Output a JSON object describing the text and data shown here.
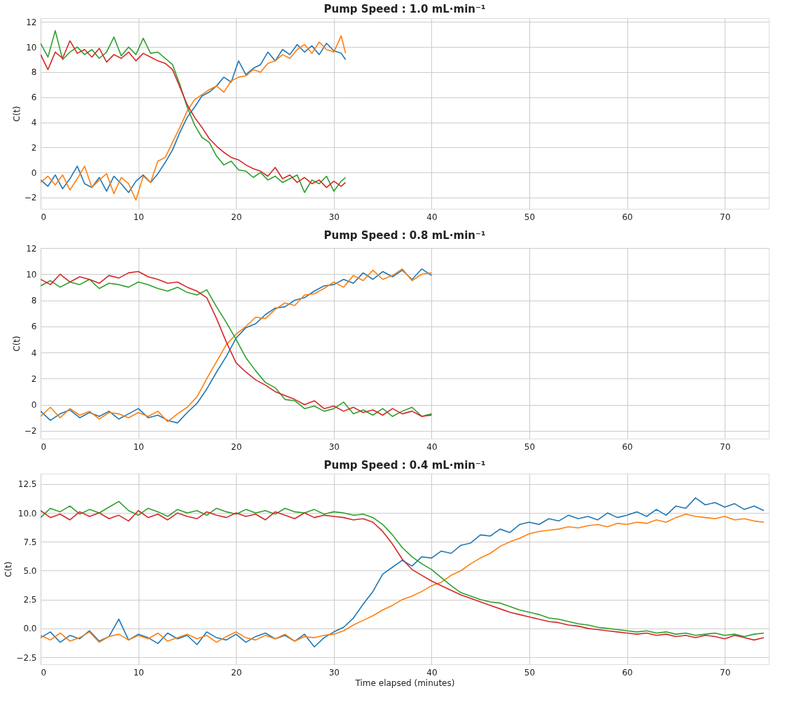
{
  "chart_data": [
    {
      "type": "line",
      "title": "Pump Speed : 1.0 mL·min⁻¹",
      "ylabel": "C(t)",
      "grid": true,
      "xlim": [
        0,
        74.5
      ],
      "xticks": [
        0,
        10,
        20,
        30,
        40,
        50,
        60,
        70
      ],
      "ylim": [
        -2.9,
        12.3
      ],
      "yticks": [
        {
          "value": -2,
          "label": "−2"
        },
        0,
        2,
        4,
        6,
        8,
        10,
        12
      ],
      "x": [
        0,
        0.75,
        1.5,
        2.25,
        3,
        3.75,
        4.5,
        5.25,
        6,
        6.75,
        7.5,
        8.25,
        9,
        9.75,
        10.5,
        11.25,
        12,
        12.75,
        13.5,
        14.25,
        15,
        15.75,
        16.5,
        17.25,
        18,
        18.75,
        19.5,
        20.25,
        21,
        21.75,
        22.5,
        23.25,
        24,
        24.75,
        25.5,
        26.25,
        27,
        27.75,
        28.5,
        29.25,
        30,
        30.75,
        31.2
      ],
      "series": [
        {
          "color": "#1f77b4",
          "values": [
            -0.6,
            -1.1,
            -0.2,
            -1.3,
            -0.5,
            0.5,
            -0.9,
            -1.2,
            -0.4,
            -1.5,
            -0.3,
            -0.9,
            -1.6,
            -0.7,
            -0.2,
            -0.8,
            -0.1,
            0.8,
            1.8,
            3.2,
            4.4,
            5.2,
            6.1,
            6.4,
            6.9,
            7.6,
            7.2,
            8.9,
            7.8,
            8.3,
            8.6,
            9.6,
            8.9,
            9.8,
            9.4,
            10.2,
            9.6,
            10.1,
            9.4,
            10.3,
            9.7,
            9.5,
            9.0
          ]
        },
        {
          "color": "#ff7f0e",
          "values": [
            -0.8,
            -0.3,
            -1.0,
            -0.2,
            -1.4,
            -0.5,
            0.5,
            -1.2,
            -0.6,
            -0.1,
            -1.7,
            -0.4,
            -0.9,
            -2.2,
            -0.3,
            -0.8,
            0.9,
            1.2,
            2.4,
            3.6,
            4.9,
            5.8,
            6.2,
            6.6,
            6.9,
            6.4,
            7.3,
            7.6,
            7.7,
            8.2,
            8.0,
            8.7,
            8.9,
            9.4,
            9.1,
            9.8,
            10.2,
            9.5,
            10.4,
            9.8,
            9.6,
            10.9,
            9.5
          ]
        },
        {
          "color": "#2ca02c",
          "values": [
            10.3,
            9.2,
            11.3,
            9.0,
            9.6,
            10.0,
            9.4,
            9.8,
            9.1,
            9.6,
            10.8,
            9.3,
            10.0,
            9.4,
            10.7,
            9.5,
            9.6,
            9.1,
            8.6,
            7.0,
            5.2,
            3.8,
            2.8,
            2.4,
            1.3,
            0.6,
            0.9,
            0.2,
            0.1,
            -0.4,
            0.0,
            -0.6,
            -0.3,
            -0.8,
            -0.5,
            -0.2,
            -1.6,
            -0.6,
            -0.9,
            -0.3,
            -1.5,
            -0.7,
            -0.4
          ]
        },
        {
          "color": "#d62728",
          "values": [
            9.4,
            8.2,
            9.6,
            9.1,
            10.5,
            9.5,
            9.8,
            9.2,
            9.9,
            8.8,
            9.4,
            9.1,
            9.6,
            8.9,
            9.5,
            9.2,
            8.9,
            8.7,
            8.2,
            6.8,
            5.4,
            4.4,
            3.6,
            2.7,
            2.1,
            1.6,
            1.2,
            1.0,
            0.6,
            0.3,
            0.1,
            -0.3,
            0.4,
            -0.5,
            -0.2,
            -0.8,
            -0.4,
            -0.9,
            -0.6,
            -1.2,
            -0.7,
            -1.1,
            -0.8
          ]
        }
      ]
    },
    {
      "type": "line",
      "title": "Pump Speed : 0.8 mL·min⁻¹",
      "ylabel": "C(t)",
      "grid": true,
      "xlim": [
        0,
        74.5
      ],
      "xticks": [
        0,
        10,
        20,
        30,
        40,
        50,
        60,
        70
      ],
      "ylim": [
        -2.6,
        12
      ],
      "yticks": [
        {
          "value": -2,
          "label": "−2"
        },
        0,
        2,
        4,
        6,
        8,
        10,
        12
      ],
      "x": [
        0,
        1,
        2,
        3,
        4,
        5,
        6,
        7,
        8,
        9,
        10,
        11,
        12,
        13,
        14,
        15,
        16,
        17,
        18,
        19,
        20,
        21,
        22,
        23,
        24,
        25,
        26,
        27,
        28,
        29,
        30,
        31,
        32,
        33,
        34,
        35,
        36,
        37,
        38,
        39,
        40
      ],
      "series": [
        {
          "color": "#1f77b4",
          "values": [
            -0.5,
            -1.2,
            -0.7,
            -0.4,
            -1.0,
            -0.6,
            -0.9,
            -0.5,
            -1.1,
            -0.7,
            -0.3,
            -1.0,
            -0.8,
            -1.2,
            -1.4,
            -0.6,
            0.1,
            1.2,
            2.5,
            3.7,
            5.1,
            5.9,
            6.2,
            6.9,
            7.4,
            7.5,
            8.0,
            8.2,
            8.7,
            9.1,
            9.2,
            9.6,
            9.3,
            10.1,
            9.6,
            10.2,
            9.8,
            10.3,
            9.6,
            10.4,
            9.9
          ]
        },
        {
          "color": "#ff7f0e",
          "values": [
            -0.9,
            -0.2,
            -1.0,
            -0.3,
            -0.8,
            -0.5,
            -1.1,
            -0.6,
            -0.7,
            -1.0,
            -0.6,
            -0.9,
            -0.5,
            -1.3,
            -0.7,
            -0.2,
            0.6,
            2.0,
            3.3,
            4.6,
            5.4,
            6.0,
            6.7,
            6.6,
            7.3,
            7.8,
            7.6,
            8.4,
            8.5,
            8.9,
            9.4,
            9.0,
            9.9,
            9.5,
            10.3,
            9.6,
            9.9,
            10.4,
            9.5,
            10.0,
            10.1
          ]
        },
        {
          "color": "#2ca02c",
          "values": [
            9.1,
            9.5,
            9.0,
            9.4,
            9.2,
            9.6,
            8.9,
            9.3,
            9.2,
            9.0,
            9.4,
            9.2,
            8.9,
            8.7,
            9.0,
            8.6,
            8.4,
            8.8,
            7.5,
            6.3,
            5.0,
            3.6,
            2.6,
            1.7,
            1.3,
            0.4,
            0.3,
            -0.3,
            -0.1,
            -0.5,
            -0.3,
            0.2,
            -0.7,
            -0.4,
            -0.8,
            -0.3,
            -0.9,
            -0.5,
            -0.2,
            -0.9,
            -0.7
          ]
        },
        {
          "color": "#d62728",
          "values": [
            9.6,
            9.2,
            10.0,
            9.4,
            9.8,
            9.6,
            9.3,
            9.9,
            9.7,
            10.1,
            10.2,
            9.8,
            9.6,
            9.3,
            9.4,
            9.0,
            8.7,
            8.2,
            6.6,
            4.8,
            3.2,
            2.5,
            1.9,
            1.5,
            1.0,
            0.7,
            0.4,
            0.0,
            0.3,
            -0.3,
            -0.1,
            -0.5,
            -0.2,
            -0.6,
            -0.4,
            -0.8,
            -0.3,
            -0.7,
            -0.5,
            -0.9,
            -0.8
          ]
        }
      ]
    },
    {
      "type": "line",
      "title": "Pump Speed : 0.4 mL·min⁻¹",
      "xlabel": "Time elapsed (minutes)",
      "ylabel": "C(t)",
      "grid": true,
      "xlim": [
        0,
        74.5
      ],
      "xticks": [
        0,
        10,
        20,
        30,
        40,
        50,
        60,
        70
      ],
      "ylim": [
        -3.1,
        13.4
      ],
      "yticks": [
        {
          "value": -2.5,
          "label": "−2.5"
        },
        {
          "value": 0,
          "label": "0.0"
        },
        2.5,
        {
          "value": 5,
          "label": "5.0"
        },
        7.5,
        {
          "value": 10,
          "label": "10.0"
        },
        12.5
      ],
      "x": [
        0,
        1,
        2,
        3,
        4,
        5,
        6,
        7,
        8,
        9,
        10,
        11,
        12,
        13,
        14,
        15,
        16,
        17,
        18,
        19,
        20,
        21,
        22,
        23,
        24,
        25,
        26,
        27,
        28,
        29,
        30,
        31,
        32,
        33,
        34,
        35,
        36,
        37,
        38,
        39,
        40,
        41,
        42,
        43,
        44,
        45,
        46,
        47,
        48,
        49,
        50,
        51,
        52,
        53,
        54,
        55,
        56,
        57,
        58,
        59,
        60,
        61,
        62,
        63,
        64,
        65,
        66,
        67,
        68,
        69,
        70,
        71,
        72,
        73,
        74
      ],
      "series": [
        {
          "color": "#1f77b4",
          "values": [
            -0.8,
            -0.3,
            -1.2,
            -0.6,
            -0.9,
            -0.2,
            -1.1,
            -0.7,
            0.8,
            -1.0,
            -0.5,
            -0.8,
            -1.3,
            -0.4,
            -0.9,
            -0.6,
            -1.4,
            -0.3,
            -0.8,
            -1.0,
            -0.5,
            -1.2,
            -0.7,
            -0.4,
            -0.9,
            -0.6,
            -1.1,
            -0.5,
            -1.6,
            -0.8,
            -0.3,
            0.1,
            0.9,
            2.1,
            3.2,
            4.7,
            5.3,
            5.9,
            5.4,
            6.2,
            6.1,
            6.7,
            6.5,
            7.2,
            7.4,
            8.1,
            8.0,
            8.6,
            8.3,
            9.0,
            9.2,
            9.0,
            9.5,
            9.3,
            9.8,
            9.5,
            9.7,
            9.4,
            10.0,
            9.6,
            9.8,
            10.1,
            9.7,
            10.3,
            9.8,
            10.6,
            10.4,
            11.3,
            10.7,
            10.9,
            10.5,
            10.8,
            10.3,
            10.6,
            10.2
          ]
        },
        {
          "color": "#ff7f0e",
          "values": [
            -0.6,
            -1.0,
            -0.4,
            -1.1,
            -0.8,
            -0.3,
            -1.2,
            -0.7,
            -0.5,
            -1.0,
            -0.6,
            -0.9,
            -0.4,
            -1.1,
            -0.8,
            -0.5,
            -0.9,
            -0.6,
            -1.2,
            -0.7,
            -0.3,
            -0.8,
            -1.0,
            -0.6,
            -0.9,
            -0.5,
            -1.1,
            -0.7,
            -0.8,
            -0.6,
            -0.5,
            -0.2,
            0.3,
            0.7,
            1.1,
            1.6,
            2.0,
            2.5,
            2.8,
            3.2,
            3.7,
            4.0,
            4.6,
            5.0,
            5.6,
            6.1,
            6.5,
            7.1,
            7.5,
            7.8,
            8.2,
            8.4,
            8.5,
            8.6,
            8.8,
            8.7,
            8.9,
            9.0,
            8.8,
            9.1,
            9.0,
            9.2,
            9.1,
            9.4,
            9.2,
            9.6,
            9.9,
            9.7,
            9.6,
            9.5,
            9.7,
            9.4,
            9.5,
            9.3,
            9.2
          ]
        },
        {
          "color": "#2ca02c",
          "values": [
            9.6,
            10.4,
            10.1,
            10.6,
            9.9,
            10.3,
            10.0,
            10.5,
            11.0,
            10.2,
            9.8,
            10.4,
            10.1,
            9.7,
            10.3,
            10.0,
            10.2,
            9.8,
            10.4,
            10.1,
            9.9,
            10.3,
            10.0,
            10.2,
            9.9,
            10.4,
            10.1,
            10.0,
            10.3,
            9.9,
            10.1,
            10.0,
            9.8,
            9.9,
            9.6,
            9.0,
            8.1,
            7.0,
            6.2,
            5.6,
            5.1,
            4.4,
            3.7,
            3.1,
            2.8,
            2.5,
            2.3,
            2.2,
            1.9,
            1.6,
            1.4,
            1.2,
            0.9,
            0.8,
            0.6,
            0.4,
            0.3,
            0.1,
            0.0,
            -0.1,
            -0.2,
            -0.3,
            -0.2,
            -0.4,
            -0.3,
            -0.5,
            -0.4,
            -0.6,
            -0.5,
            -0.4,
            -0.6,
            -0.5,
            -0.7,
            -0.5,
            -0.4
          ]
        },
        {
          "color": "#d62728",
          "values": [
            10.2,
            9.6,
            9.9,
            9.4,
            10.1,
            9.7,
            10.0,
            9.5,
            9.8,
            9.3,
            10.2,
            9.6,
            9.9,
            9.4,
            10.0,
            9.7,
            9.5,
            10.1,
            9.8,
            9.6,
            10.0,
            9.7,
            9.9,
            9.4,
            10.1,
            9.8,
            9.5,
            10.0,
            9.6,
            9.8,
            9.7,
            9.6,
            9.4,
            9.5,
            9.2,
            8.4,
            7.3,
            6.0,
            5.1,
            4.6,
            4.1,
            3.7,
            3.3,
            2.9,
            2.6,
            2.3,
            2.0,
            1.7,
            1.4,
            1.2,
            1.0,
            0.8,
            0.6,
            0.5,
            0.3,
            0.2,
            0.0,
            -0.1,
            -0.2,
            -0.3,
            -0.4,
            -0.5,
            -0.4,
            -0.6,
            -0.5,
            -0.7,
            -0.6,
            -0.8,
            -0.6,
            -0.7,
            -0.9,
            -0.6,
            -0.8,
            -1.0,
            -0.8
          ]
        }
      ]
    }
  ]
}
